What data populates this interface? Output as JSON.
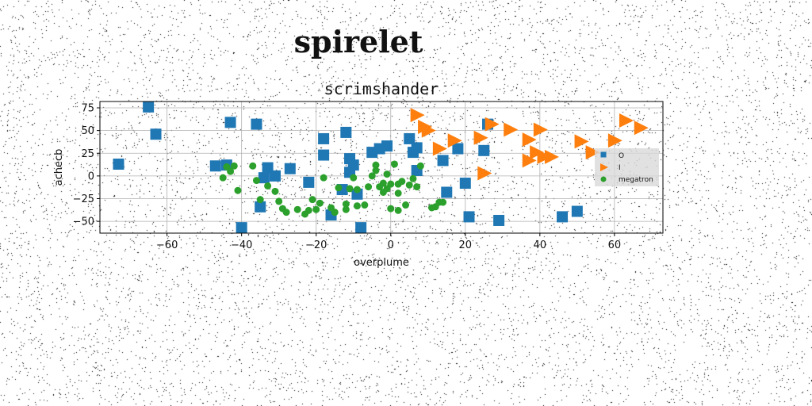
{
  "figure": {
    "suptitle": "spirelet"
  },
  "chart_data": {
    "type": "scatter",
    "title": "scrimshander",
    "xlabel": "overplume",
    "ylabel": "achecb",
    "xlim": [
      -78,
      73
    ],
    "ylim": [
      -63,
      82
    ],
    "xticks": [
      -60,
      -40,
      -20,
      0,
      20,
      40,
      60
    ],
    "yticks": [
      -50,
      -25,
      0,
      25,
      50,
      75
    ],
    "xtick_labels": [
      "−60",
      "−40",
      "−20",
      "0",
      "20",
      "40",
      "60"
    ],
    "ytick_labels": [
      "−50",
      "−25",
      "0",
      "25",
      "50",
      "75"
    ],
    "grid": true,
    "legend_position": "center-right",
    "series": [
      {
        "name": "O",
        "marker": "square",
        "color": "#1f77b4",
        "points": [
          [
            -73,
            13
          ],
          [
            -65,
            76
          ],
          [
            -63,
            46
          ],
          [
            -47,
            11
          ],
          [
            -44,
            12
          ],
          [
            -43,
            59
          ],
          [
            -36,
            57
          ],
          [
            -35,
            -34
          ],
          [
            -34,
            -2
          ],
          [
            -33,
            9
          ],
          [
            -31,
            0
          ],
          [
            -27,
            8
          ],
          [
            -22,
            -7
          ],
          [
            -18,
            41
          ],
          [
            -18,
            23
          ],
          [
            -16,
            -43
          ],
          [
            -13,
            -15
          ],
          [
            -12,
            48
          ],
          [
            -11,
            19
          ],
          [
            -11,
            4
          ],
          [
            -10,
            12
          ],
          [
            -9,
            -20
          ],
          [
            -8,
            -57
          ],
          [
            -5,
            26
          ],
          [
            -3,
            30
          ],
          [
            -1,
            33
          ],
          [
            -40,
            -57
          ],
          [
            5,
            41
          ],
          [
            6,
            26
          ],
          [
            7,
            31
          ],
          [
            7,
            6
          ],
          [
            14,
            17
          ],
          [
            15,
            -18
          ],
          [
            18,
            30
          ],
          [
            20,
            -8
          ],
          [
            21,
            -45
          ],
          [
            25,
            28
          ],
          [
            26,
            57
          ],
          [
            29,
            -49
          ],
          [
            46,
            -45
          ],
          [
            50,
            -39
          ]
        ]
      },
      {
        "name": "I",
        "marker": "triangle-right",
        "color": "#ff7f0e",
        "points": [
          [
            7,
            67
          ],
          [
            9,
            54
          ],
          [
            10,
            50
          ],
          [
            13,
            30
          ],
          [
            17,
            39
          ],
          [
            24,
            42
          ],
          [
            25,
            3
          ],
          [
            27,
            57
          ],
          [
            32,
            51
          ],
          [
            37,
            40
          ],
          [
            37,
            17
          ],
          [
            39,
            26
          ],
          [
            40,
            51
          ],
          [
            41,
            21
          ],
          [
            43,
            21
          ],
          [
            51,
            38
          ],
          [
            54,
            26
          ],
          [
            60,
            39
          ],
          [
            63,
            61
          ],
          [
            67,
            53
          ]
        ]
      },
      {
        "name": "megatron",
        "marker": "circle",
        "color": "#2ca02c",
        "points": [
          [
            -45,
            -2
          ],
          [
            -44,
            10
          ],
          [
            -43,
            5
          ],
          [
            -42,
            11
          ],
          [
            -41,
            -16
          ],
          [
            -37,
            11
          ],
          [
            -36,
            -5
          ],
          [
            -35,
            -26
          ],
          [
            -33,
            -11
          ],
          [
            -31,
            -17
          ],
          [
            -30,
            -28
          ],
          [
            -29,
            -36
          ],
          [
            -28,
            -40
          ],
          [
            -25,
            -37
          ],
          [
            -23,
            -42
          ],
          [
            -22,
            -38
          ],
          [
            -21,
            -26
          ],
          [
            -20,
            -37
          ],
          [
            -19,
            -30
          ],
          [
            -18,
            -2
          ],
          [
            -16,
            -35
          ],
          [
            -15,
            -40
          ],
          [
            -14,
            -13
          ],
          [
            -12,
            -31
          ],
          [
            -12,
            -37
          ],
          [
            -11,
            -14
          ],
          [
            -10,
            -2
          ],
          [
            -9,
            -15
          ],
          [
            -9,
            -33
          ],
          [
            -7,
            -32
          ],
          [
            -6,
            -12
          ],
          [
            -5,
            0
          ],
          [
            -4,
            6
          ],
          [
            -4,
            12
          ],
          [
            -3,
            -12
          ],
          [
            -2,
            -8
          ],
          [
            -2,
            -18
          ],
          [
            -1,
            2
          ],
          [
            -1,
            -14
          ],
          [
            0,
            -9
          ],
          [
            0,
            -36
          ],
          [
            1,
            13
          ],
          [
            2,
            -9
          ],
          [
            2,
            -19
          ],
          [
            2,
            -38
          ],
          [
            3,
            -6
          ],
          [
            4,
            -32
          ],
          [
            5,
            -10
          ],
          [
            6,
            -3
          ],
          [
            7,
            -12
          ],
          [
            8,
            11
          ],
          [
            11,
            -35
          ],
          [
            12,
            -34
          ],
          [
            13,
            -29
          ],
          [
            14,
            -29
          ]
        ]
      }
    ]
  }
}
